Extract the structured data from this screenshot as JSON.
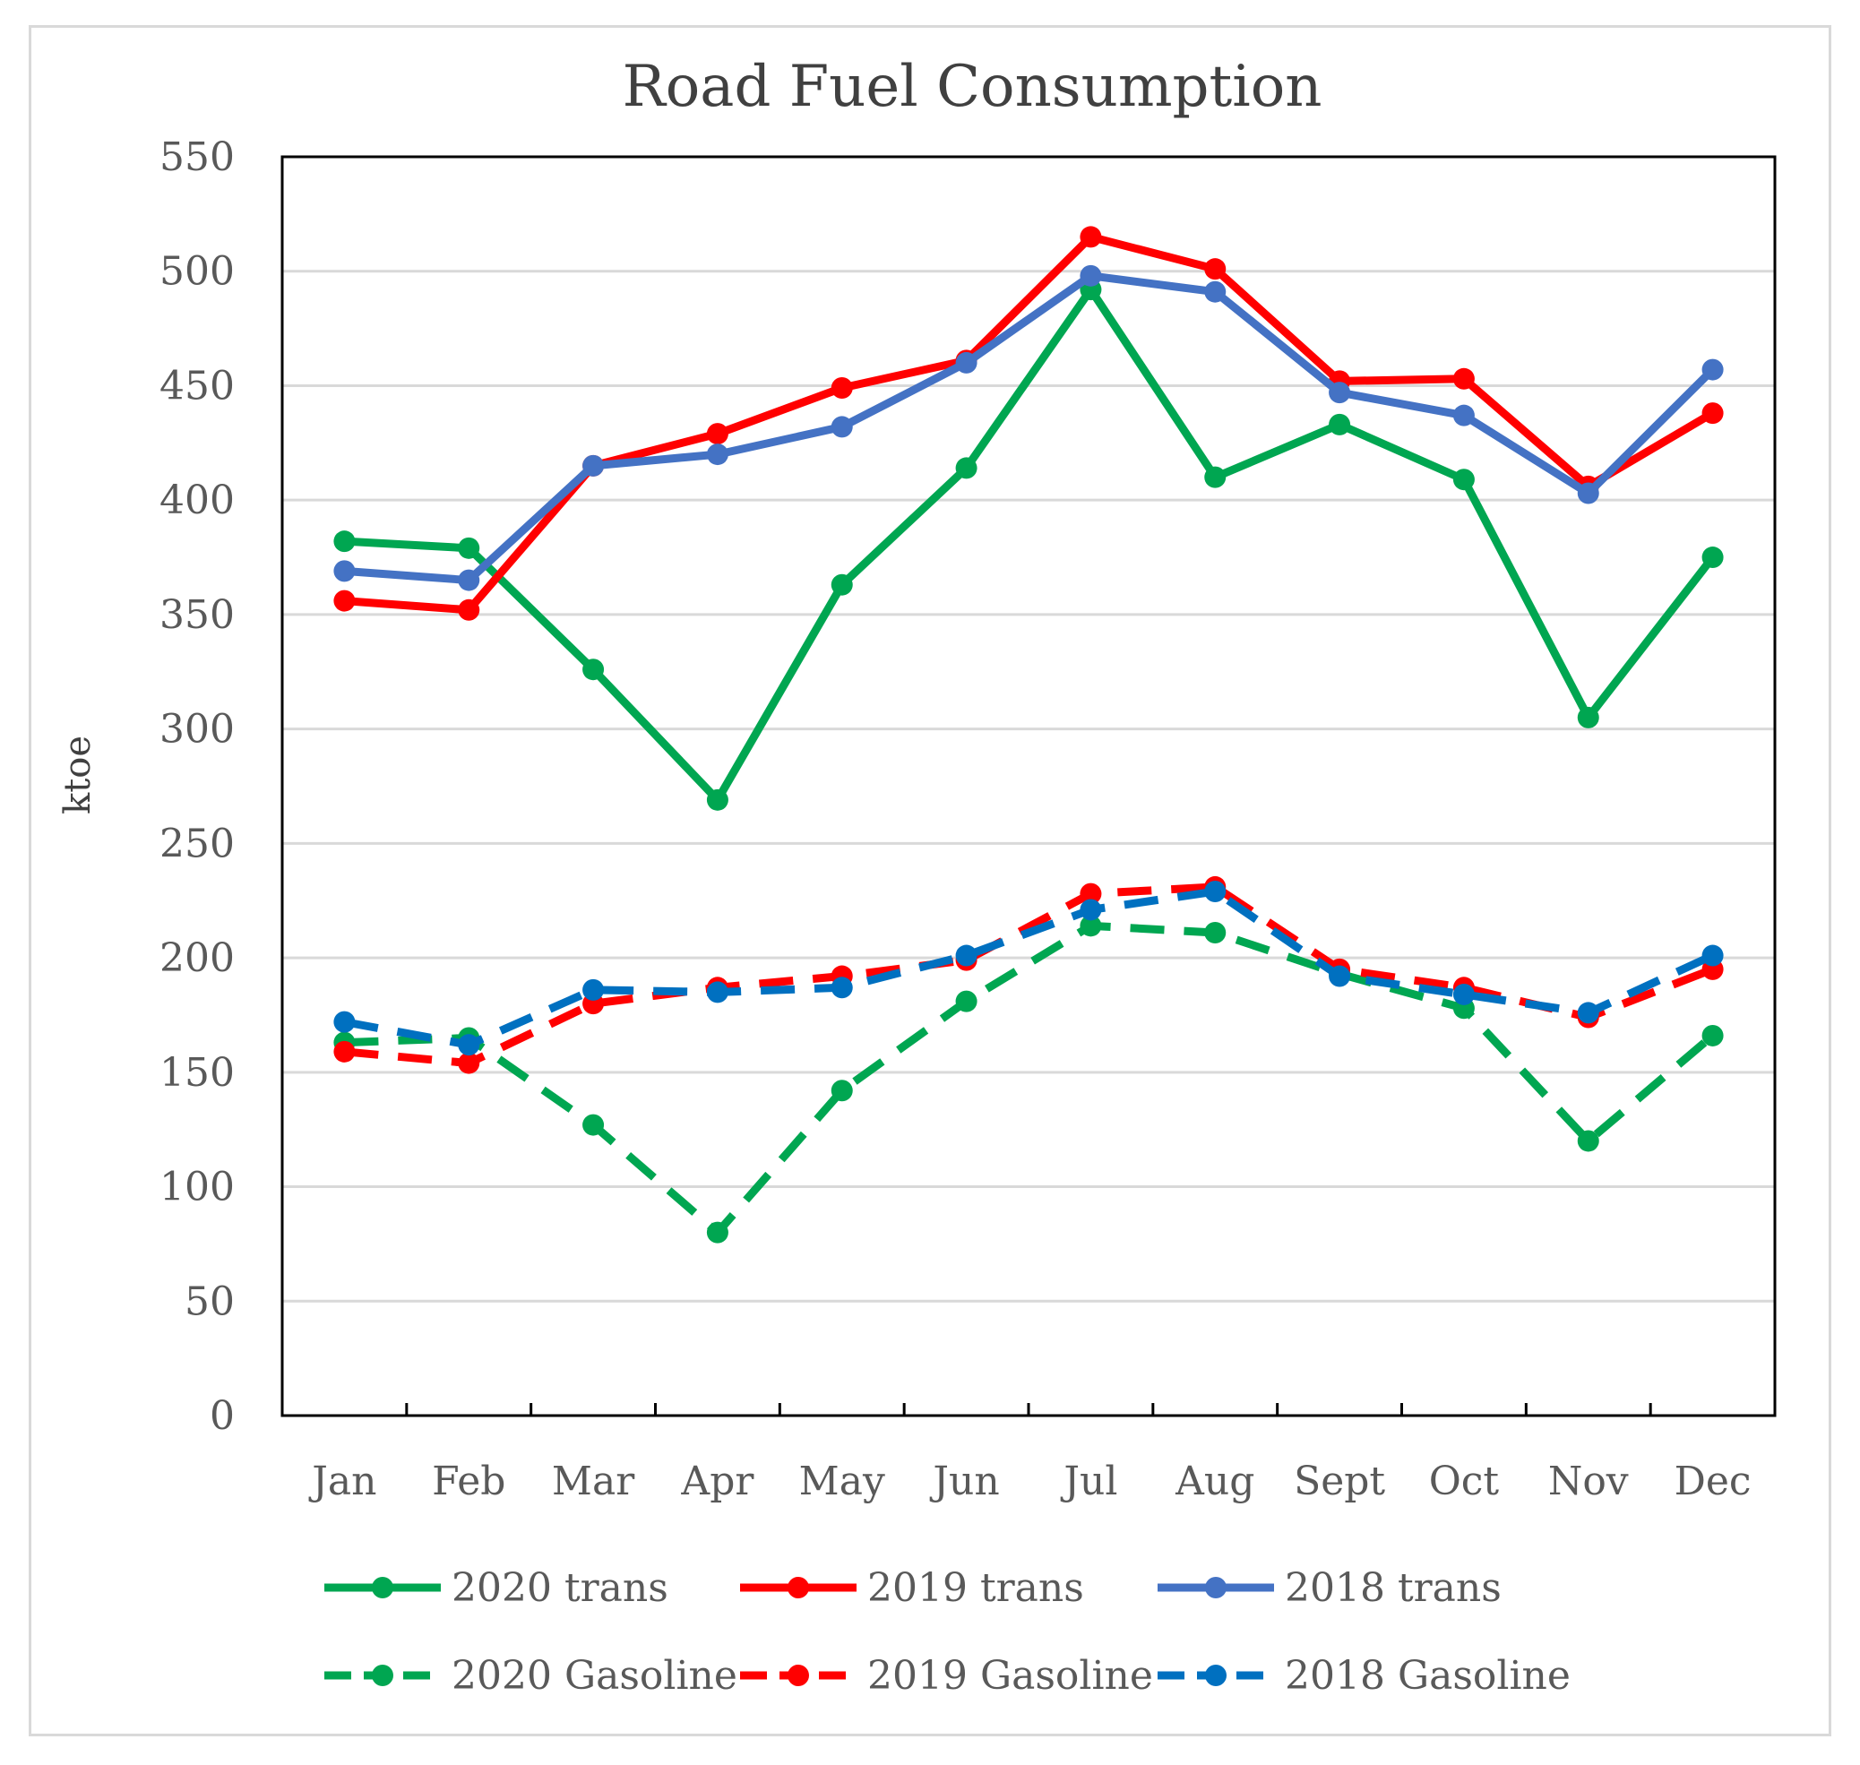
{
  "chart_data": {
    "type": "line",
    "title": "Road Fuel Consumption",
    "xlabel": "",
    "ylabel": "ktoe",
    "ylim": [
      0,
      550
    ],
    "yticks": [
      0,
      50,
      100,
      150,
      200,
      250,
      300,
      350,
      400,
      450,
      500,
      550
    ],
    "categories": [
      "Jan",
      "Feb",
      "Mar",
      "Apr",
      "May",
      "Jun",
      "Jul",
      "Aug",
      "Sept",
      "Oct",
      "Nov",
      "Dec"
    ],
    "grid": true,
    "legend_position": "bottom",
    "series": [
      {
        "name": "2020 trans",
        "color": "#00a651",
        "dash": "solid",
        "values": [
          382,
          379,
          326,
          269,
          363,
          414,
          492,
          410,
          433,
          409,
          305,
          375
        ]
      },
      {
        "name": "2019 trans",
        "color": "#ff0000",
        "dash": "solid",
        "values": [
          356,
          352,
          415,
          429,
          449,
          461,
          515,
          501,
          452,
          453,
          406,
          438
        ]
      },
      {
        "name": "2018 trans",
        "color": "#4472c4",
        "dash": "solid",
        "values": [
          369,
          365,
          415,
          420,
          432,
          460,
          498,
          491,
          447,
          437,
          403,
          457
        ]
      },
      {
        "name": "2020 Gasoline",
        "color": "#00a651",
        "dash": "dashed",
        "values": [
          163,
          165,
          127,
          80,
          142,
          181,
          214,
          211,
          193,
          178,
          120,
          166
        ]
      },
      {
        "name": "2019 Gasoline",
        "color": "#ff0000",
        "dash": "dashed",
        "values": [
          159,
          154,
          180,
          187,
          192,
          199,
          228,
          231,
          195,
          187,
          174,
          195
        ]
      },
      {
        "name": "2018 Gasoline",
        "color": "#0070c0",
        "dash": "dashed",
        "values": [
          172,
          162,
          186,
          185,
          187,
          201,
          221,
          229,
          192,
          184,
          176,
          201
        ]
      }
    ]
  }
}
